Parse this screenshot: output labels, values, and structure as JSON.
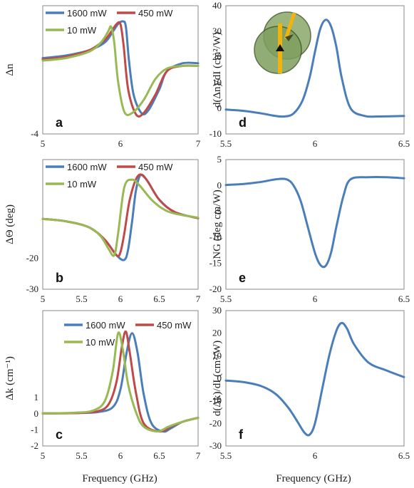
{
  "colors": {
    "series1600": "#4a7ebb",
    "series450": "#be4b48",
    "series10": "#98b954",
    "single": "#4a7ebb"
  },
  "shared_xlabel": "Frequency (GHz)",
  "chart_data": [
    {
      "id": "a",
      "type": "line",
      "panel_label": "a",
      "ylabel": "Δn",
      "xlim": [
        5,
        7
      ],
      "ylim": [
        -4,
        0.9
      ],
      "xticks": [
        "5",
        "6",
        "7"
      ],
      "xtick_values": [
        5,
        6,
        7
      ],
      "yticks": [
        "-4"
      ],
      "ytick_values": [
        -4
      ],
      "legend": {
        "position": "top-left",
        "entries": [
          "1600 mW",
          "450 mW",
          "10 mW"
        ]
      },
      "series": [
        {
          "name": "1600 mW",
          "color_key": "series1600",
          "x": [
            5.0,
            5.3,
            5.6,
            5.8,
            5.9,
            5.97,
            6.03,
            6.07,
            6.11,
            6.17,
            6.27,
            6.36,
            6.5,
            6.6,
            6.8,
            7.0
          ],
          "y": [
            -1.1,
            -1.0,
            -0.8,
            -0.5,
            -0.1,
            0.2,
            0.3,
            0.1,
            -1.2,
            -2.5,
            -3.2,
            -3.1,
            -2.3,
            -1.6,
            -1.3,
            -1.3
          ]
        },
        {
          "name": "450 mW",
          "color_key": "series450",
          "x": [
            5.0,
            5.3,
            5.6,
            5.8,
            5.88,
            5.95,
            6.0,
            6.04,
            6.1,
            6.2,
            6.3,
            6.45,
            6.6,
            6.8,
            7.0
          ],
          "y": [
            -1.15,
            -1.05,
            -0.8,
            -0.4,
            -0.1,
            0.2,
            0.2,
            -0.6,
            -2.3,
            -3.25,
            -3.2,
            -2.5,
            -1.6,
            -1.4,
            -1.4
          ]
        },
        {
          "name": "10 mW",
          "color_key": "series10",
          "x": [
            5.0,
            5.3,
            5.6,
            5.75,
            5.84,
            5.88,
            5.92,
            5.97,
            6.05,
            6.15,
            6.3,
            6.45,
            6.6,
            6.8,
            7.0
          ],
          "y": [
            -1.2,
            -1.1,
            -0.85,
            -0.5,
            -0.1,
            0.1,
            -0.5,
            -2.0,
            -3.15,
            -3.2,
            -2.7,
            -1.9,
            -1.5,
            -1.4,
            -1.4
          ]
        }
      ]
    },
    {
      "id": "b",
      "type": "line",
      "panel_label": "b",
      "ylabel": "ΔΘ (deg)",
      "xlim": [
        5,
        7
      ],
      "ylim": [
        -30,
        12
      ],
      "xticks": [
        "5",
        "5.5",
        "6",
        "6.5",
        "7"
      ],
      "xtick_values": [
        5,
        5.5,
        6,
        6.5,
        7
      ],
      "yticks": [
        "-20",
        "-30"
      ],
      "ytick_values": [
        -20,
        -30
      ],
      "legend": {
        "position": "top-left",
        "entries": [
          "1600 mW",
          "450 mW",
          "10 mW"
        ]
      },
      "series": [
        {
          "name": "1600 mW",
          "color_key": "series1600",
          "x": [
            5.0,
            5.3,
            5.6,
            5.8,
            5.95,
            6.05,
            6.1,
            6.15,
            6.2,
            6.26,
            6.35,
            6.5,
            6.7,
            7.0
          ],
          "y": [
            -7.2,
            -8,
            -10,
            -14,
            -19,
            -20.5,
            -17,
            -8,
            2,
            7,
            5,
            -1,
            -5,
            -7
          ]
        },
        {
          "name": "450 mW",
          "color_key": "series450",
          "x": [
            5.0,
            5.3,
            5.6,
            5.8,
            5.95,
            6.0,
            6.05,
            6.12,
            6.22,
            6.32,
            6.5,
            6.7,
            7.0
          ],
          "y": [
            -7.2,
            -8,
            -10,
            -14,
            -19,
            -18,
            -12,
            -1,
            6.5,
            6,
            -1,
            -5,
            -7
          ]
        },
        {
          "name": "10 mW",
          "color_key": "series10",
          "x": [
            5.0,
            5.3,
            5.6,
            5.75,
            5.85,
            5.92,
            5.97,
            6.05,
            6.15,
            6.25,
            6.4,
            6.55,
            6.7,
            7.0
          ],
          "y": [
            -7.2,
            -8,
            -10,
            -13,
            -17,
            -19,
            -12,
            3,
            5.5,
            3.5,
            -1,
            -4,
            -5.5,
            -6.8
          ]
        }
      ]
    },
    {
      "id": "c",
      "type": "line",
      "panel_label": "c",
      "ylabel": "Δk (cm⁻¹)",
      "xlim": [
        5,
        7
      ],
      "ylim": [
        -2,
        6.4
      ],
      "xticks": [
        "5",
        "5.5",
        "6",
        "6.5",
        "7"
      ],
      "xtick_values": [
        5,
        5.5,
        6,
        6.5,
        7
      ],
      "yticks": [
        "1",
        "0",
        "-1",
        "-2"
      ],
      "ytick_values": [
        1,
        0,
        -1,
        -2
      ],
      "legend": {
        "position": "top-right",
        "entries": [
          "1600 mW",
          "450 mW",
          "10 mW"
        ]
      },
      "series": [
        {
          "name": "1600 mW",
          "color_key": "series1600",
          "x": [
            5.0,
            5.4,
            5.7,
            5.9,
            6.0,
            6.08,
            6.15,
            6.22,
            6.3,
            6.4,
            6.55,
            6.65,
            6.8,
            7.0
          ],
          "y": [
            0.02,
            0.04,
            0.1,
            0.4,
            1.5,
            3.8,
            5.0,
            3.8,
            1.2,
            -0.6,
            -1.1,
            -0.9,
            -0.5,
            -0.25
          ]
        },
        {
          "name": "450 mW",
          "color_key": "series450",
          "x": [
            5.0,
            5.4,
            5.7,
            5.85,
            5.95,
            6.02,
            6.07,
            6.12,
            6.2,
            6.3,
            6.5,
            6.65,
            6.8,
            7.0
          ],
          "y": [
            0.02,
            0.04,
            0.15,
            0.6,
            2.0,
            4.2,
            5.1,
            3.8,
            1.3,
            -0.6,
            -1.1,
            -0.8,
            -0.5,
            -0.25
          ]
        },
        {
          "name": "10 mW",
          "color_key": "series10",
          "x": [
            5.0,
            5.4,
            5.65,
            5.8,
            5.9,
            5.97,
            6.03,
            6.1,
            6.2,
            6.3,
            6.48,
            6.62,
            6.8,
            7.0
          ],
          "y": [
            0.02,
            0.06,
            0.2,
            0.8,
            2.6,
            5.0,
            4.0,
            1.8,
            0.1,
            -0.8,
            -1.1,
            -0.8,
            -0.5,
            -0.25
          ]
        }
      ]
    },
    {
      "id": "d",
      "type": "line",
      "panel_label": "d",
      "ylabel": "d(Δn)/dI (cm²/W)",
      "xlim": [
        5.5,
        6.5
      ],
      "ylim": [
        -10,
        40
      ],
      "xticks": [
        "5.5",
        "6",
        "6.5"
      ],
      "xtick_values": [
        5.5,
        6,
        6.5
      ],
      "yticks": [
        "40",
        "30",
        "20",
        "10",
        "0",
        "-10"
      ],
      "ytick_values": [
        40,
        30,
        20,
        10,
        0,
        -10
      ],
      "series": [
        {
          "color_key": "single",
          "x": [
            5.5,
            5.6,
            5.7,
            5.78,
            5.83,
            5.88,
            5.93,
            5.97,
            6.0,
            6.03,
            6.06,
            6.09,
            6.12,
            6.15,
            6.2,
            6.28,
            6.35,
            6.5
          ],
          "y": [
            -0.5,
            -1,
            -2,
            -3,
            -3.2,
            -2,
            3,
            12,
            22,
            31,
            34.5,
            32,
            24,
            12,
            0,
            -3,
            -3.2,
            -3
          ]
        }
      ]
    },
    {
      "id": "e",
      "type": "line",
      "panel_label": "e",
      "ylabel": "NG (deg cm/W)",
      "xlim": [
        5.5,
        6.5
      ],
      "ylim": [
        -20,
        5
      ],
      "xticks": [
        "5.5",
        "6",
        "6.5"
      ],
      "xtick_values": [
        5.5,
        6,
        6.5
      ],
      "yticks": [
        "5",
        "0",
        "-5",
        "-10",
        "-15",
        "-20"
      ],
      "ytick_values": [
        5,
        0,
        -5,
        -10,
        -15,
        -20
      ],
      "series": [
        {
          "color_key": "single",
          "x": [
            5.5,
            5.6,
            5.7,
            5.78,
            5.84,
            5.88,
            5.92,
            5.96,
            6.0,
            6.03,
            6.06,
            6.09,
            6.12,
            6.16,
            6.2,
            6.3,
            6.4,
            6.5
          ],
          "y": [
            0.1,
            0.3,
            0.7,
            1.2,
            1.2,
            0,
            -3,
            -8,
            -13,
            -15.3,
            -15.5,
            -13,
            -8,
            -2,
            1.2,
            1.6,
            1.6,
            1.4
          ]
        }
      ]
    },
    {
      "id": "f",
      "type": "line",
      "panel_label": "f",
      "ylabel": "d(Δk)/dI (cm²/W)",
      "xlim": [
        5.5,
        6.5
      ],
      "ylim": [
        -30,
        30
      ],
      "xticks": [
        "5.5",
        "6",
        "6.5"
      ],
      "xtick_values": [
        5.5,
        6,
        6.5
      ],
      "yticks": [
        "30",
        "20",
        "10",
        "0",
        "-10",
        "-20",
        "-30"
      ],
      "ytick_values": [
        30,
        20,
        10,
        0,
        -10,
        -20,
        -30
      ],
      "series": [
        {
          "color_key": "single",
          "x": [
            5.5,
            5.6,
            5.7,
            5.78,
            5.85,
            5.9,
            5.94,
            5.97,
            6.0,
            6.04,
            6.08,
            6.12,
            6.15,
            6.18,
            6.22,
            6.3,
            6.4,
            6.5
          ],
          "y": [
            -1,
            -1.7,
            -3.5,
            -7,
            -13,
            -19,
            -24,
            -25,
            -20,
            -5,
            10,
            21,
            24.5,
            22,
            15,
            7,
            3.5,
            0.5
          ]
        }
      ]
    }
  ]
}
